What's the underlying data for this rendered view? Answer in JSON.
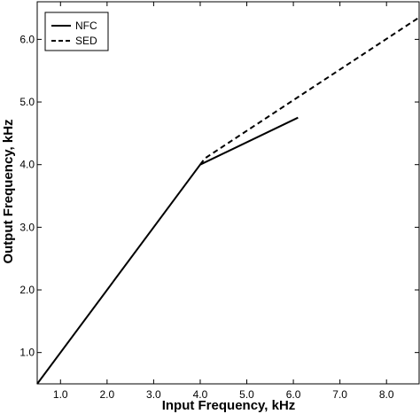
{
  "chart_data": {
    "type": "line",
    "xlabel": "Input Frequency, kHz",
    "ylabel": "Output Frequency, kHz",
    "xlim": [
      0.5,
      8.7
    ],
    "ylim": [
      0.5,
      6.6
    ],
    "x_ticks": [
      1.0,
      2.0,
      3.0,
      4.0,
      5.0,
      6.0,
      7.0,
      8.0
    ],
    "x_tick_labels": [
      "1.0",
      "2.0",
      "3.0",
      "4.0",
      "5.0",
      "6.0",
      "7.0",
      "8.0"
    ],
    "y_ticks": [
      1.0,
      2.0,
      3.0,
      4.0,
      5.0,
      6.0
    ],
    "y_tick_labels": [
      "1.0",
      "2.0",
      "3.0",
      "4.0",
      "5.0",
      "6.0"
    ],
    "grid": false,
    "legend_position": "top-left",
    "series": [
      {
        "name": "NFC",
        "style": "solid",
        "color": "#000000",
        "points": [
          [
            0.5,
            0.5
          ],
          [
            4.0,
            4.0
          ],
          [
            6.1,
            4.75
          ]
        ]
      },
      {
        "name": "SED",
        "style": "dashed",
        "color": "#000000",
        "points": [
          [
            4.0,
            4.0
          ],
          [
            4.1,
            4.1
          ],
          [
            8.7,
            6.35
          ]
        ]
      }
    ]
  }
}
